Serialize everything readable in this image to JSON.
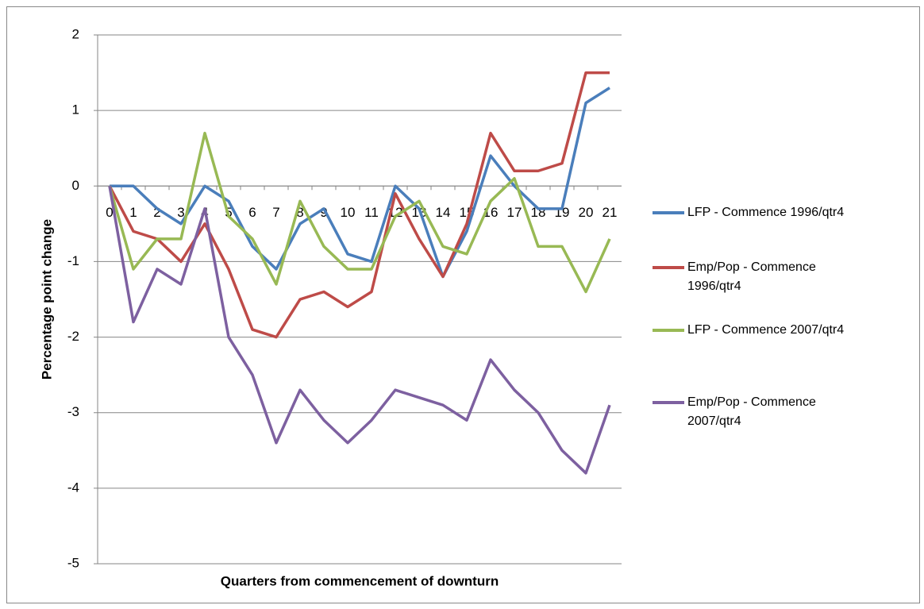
{
  "chart_data": {
    "type": "line",
    "x_label": "Quarters from commencement of downturn",
    "y_label": "Percentage point change",
    "categories": [
      "0",
      "1",
      "2",
      "3",
      "4",
      "5",
      "6",
      "7",
      "8",
      "9",
      "10",
      "11",
      "12",
      "13",
      "14",
      "15",
      "16",
      "17",
      "18",
      "19",
      "20",
      "21"
    ],
    "series": [
      {
        "name": "LFP - Commence 1996/qtr4",
        "color": "#4a7ebb",
        "values": [
          0,
          0,
          -0.3,
          -0.5,
          0,
          -0.2,
          -0.8,
          -1.1,
          -0.5,
          -0.3,
          -0.9,
          -1.0,
          0,
          -0.3,
          -1.2,
          -0.6,
          0.4,
          0,
          -0.3,
          -0.3,
          1.1,
          1.3
        ]
      },
      {
        "name": "Emp/Pop - Commence 1996/qtr4",
        "color": "#be4b48",
        "values": [
          0,
          -0.6,
          -0.7,
          -1.0,
          -0.5,
          -1.1,
          -1.9,
          -2.0,
          -1.5,
          -1.4,
          -1.6,
          -1.4,
          -0.1,
          -0.7,
          -1.2,
          -0.5,
          0.7,
          0.2,
          0.2,
          0.3,
          1.5,
          1.5
        ]
      },
      {
        "name": "LFP - Commence 2007/qtr4",
        "color": "#98b954",
        "values": [
          0,
          -1.1,
          -0.7,
          -0.7,
          0.7,
          -0.4,
          -0.7,
          -1.3,
          -0.2,
          -0.8,
          -1.1,
          -1.1,
          -0.4,
          -0.2,
          -0.8,
          -0.9,
          -0.2,
          0.1,
          -0.8,
          -0.8,
          -1.4,
          -0.7
        ]
      },
      {
        "name": "Emp/Pop - Commence 2007/qtr4",
        "color": "#7d60a0",
        "values": [
          0,
          -1.8,
          -1.1,
          -1.3,
          -0.3,
          -2.0,
          -2.5,
          -3.4,
          -2.7,
          -3.1,
          -3.4,
          -3.1,
          -2.7,
          -2.8,
          -2.9,
          -3.1,
          -2.3,
          -2.7,
          -3.0,
          -3.5,
          -3.8,
          -2.9
        ]
      }
    ],
    "ylim": [
      -5,
      2
    ],
    "yticks": [
      -5,
      -4,
      -3,
      -2,
      -1,
      0,
      1,
      2
    ],
    "grid": true,
    "legend": "right"
  }
}
